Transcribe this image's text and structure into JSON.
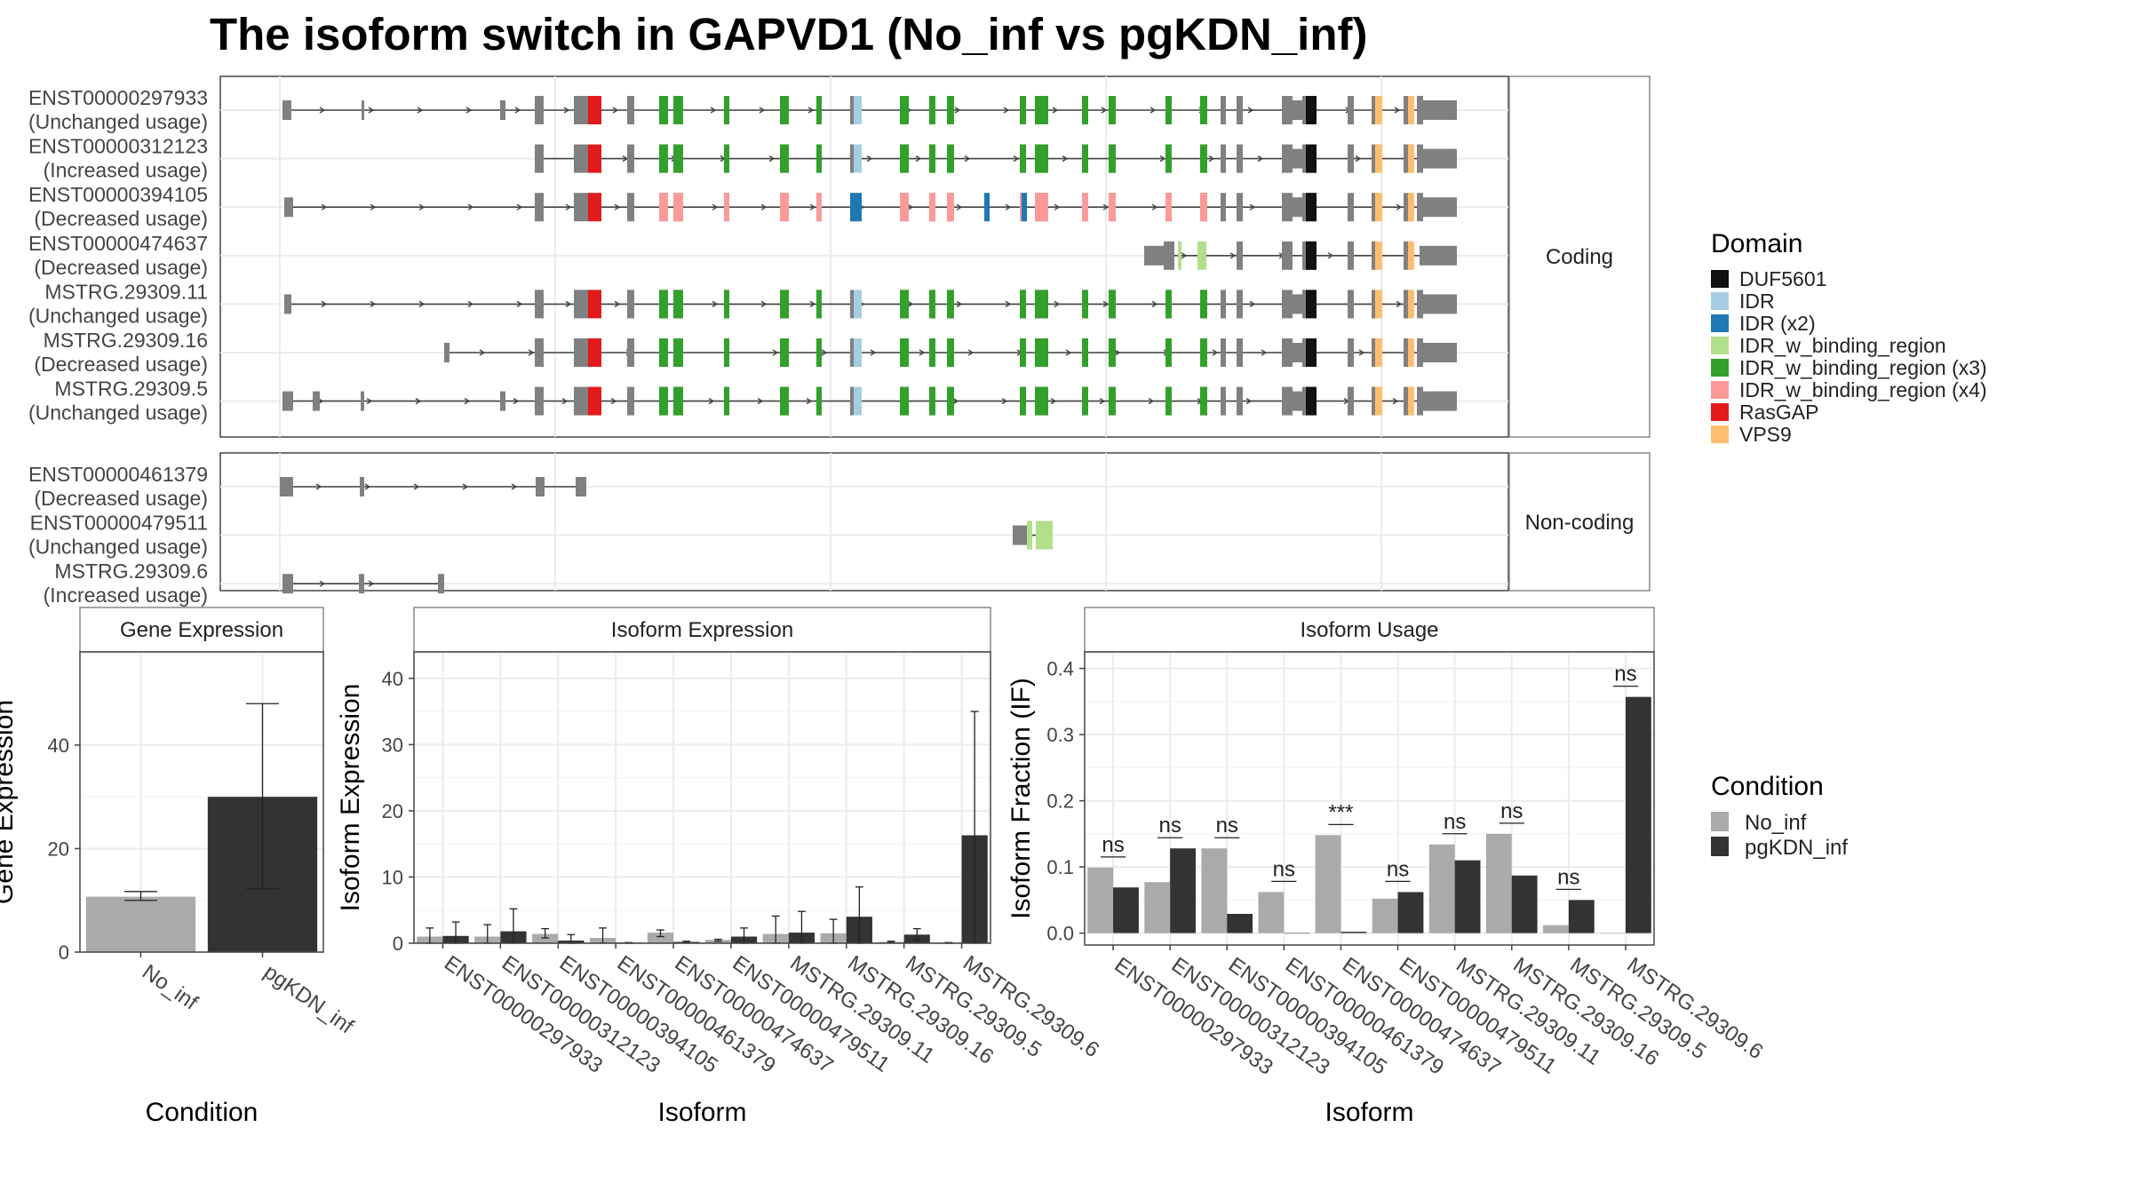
{
  "title": "The isoform switch in GAPVD1 (No_inf vs pgKDN_inf)",
  "transcripts": {
    "coding_label": "Coding",
    "noncoding_label": "Non-coding",
    "coding": [
      {
        "id": "ENST00000297933",
        "usage": "(Unchanged usage)"
      },
      {
        "id": "ENST00000312123",
        "usage": "(Increased usage)"
      },
      {
        "id": "ENST00000394105",
        "usage": "(Decreased usage)"
      },
      {
        "id": "ENST00000474637",
        "usage": "(Decreased usage)"
      },
      {
        "id": "MSTRG.29309.11",
        "usage": "(Unchanged usage)"
      },
      {
        "id": "MSTRG.29309.16",
        "usage": "(Decreased usage)"
      },
      {
        "id": "MSTRG.29309.5",
        "usage": "(Unchanged usage)"
      }
    ],
    "noncoding": [
      {
        "id": "ENST00000461379",
        "usage": "(Decreased usage)"
      },
      {
        "id": "ENST00000479511",
        "usage": "(Unchanged usage)"
      },
      {
        "id": "MSTRG.29309.6",
        "usage": "(Increased usage)"
      }
    ]
  },
  "domain_legend": {
    "title": "Domain",
    "items": [
      {
        "label": "DUF5601",
        "color": "#111111"
      },
      {
        "label": "IDR",
        "color": "#a6cee3"
      },
      {
        "label": "IDR (x2)",
        "color": "#1f78b4"
      },
      {
        "label": "IDR_w_binding_region",
        "color": "#b2df8a"
      },
      {
        "label": "IDR_w_binding_region (x3)",
        "color": "#33a02c"
      },
      {
        "label": "IDR_w_binding_region (x4)",
        "color": "#fb9a99"
      },
      {
        "label": "RasGAP",
        "color": "#e31a1c"
      },
      {
        "label": "VPS9",
        "color": "#fdbf6f"
      }
    ]
  },
  "condition_legend": {
    "title": "Condition",
    "items": [
      {
        "label": "No_inf",
        "color": "#aaaaaa"
      },
      {
        "label": "pgKDN_inf",
        "color": "#333333"
      }
    ]
  },
  "chart_data": [
    {
      "type": "bar",
      "title": "Gene Expression",
      "xlabel": "Condition",
      "ylabel": "Gene Expression",
      "categories": [
        "No_inf",
        "pgKDN_inf"
      ],
      "values": [
        10.7,
        30
      ],
      "errors": [
        [
          10,
          11.7
        ],
        [
          12.2,
          48
        ]
      ],
      "ylim": [
        0,
        58
      ],
      "yticks": [
        0,
        20,
        40
      ]
    },
    {
      "type": "bar",
      "title": "Isoform Expression",
      "xlabel": "Isoform",
      "ylabel": "Isoform Expression",
      "categories": [
        "ENST00000297933",
        "ENST00000312123",
        "ENST00000394105",
        "ENST00000461379",
        "ENST00000474637",
        "ENST00000479511",
        "MSTRG.29309.11",
        "MSTRG.29309.16",
        "MSTRG.29309.5",
        "MSTRG.29309.6"
      ],
      "series": [
        {
          "name": "No_inf",
          "values": [
            1.0,
            1.0,
            1.4,
            0.8,
            1.6,
            0.5,
            1.4,
            1.5,
            0.2,
            0.1
          ],
          "errors": [
            [
              0,
              2.3
            ],
            [
              0,
              2.8
            ],
            [
              0.8,
              2.2
            ],
            [
              0,
              2.3
            ],
            [
              1.0,
              2.0
            ],
            [
              0.3,
              0.6
            ],
            [
              0,
              4.1
            ],
            [
              0,
              3.6
            ],
            [
              0.1,
              0.3
            ],
            [
              0,
              0.1
            ]
          ]
        },
        {
          "name": "pgKDN_inf",
          "values": [
            1.1,
            1.8,
            0.4,
            0.1,
            0.2,
            1.0,
            1.6,
            4.0,
            1.3,
            16.3
          ],
          "errors": [
            [
              0,
              3.2
            ],
            [
              0,
              5.2
            ],
            [
              0,
              1.3
            ],
            [
              0,
              0.1
            ],
            [
              0.1,
              0.3
            ],
            [
              0,
              2.3
            ],
            [
              0,
              4.8
            ],
            [
              0,
              8.5
            ],
            [
              0.5,
              2.2
            ],
            [
              0,
              35
            ]
          ]
        }
      ],
      "ylim": [
        0,
        44
      ],
      "yticks": [
        0,
        10,
        20,
        30,
        40
      ]
    },
    {
      "type": "bar",
      "title": "Isoform Usage",
      "xlabel": "Isoform",
      "ylabel": "Isoform Fraction (IF)",
      "categories": [
        "ENST00000297933",
        "ENST00000312123",
        "ENST00000394105",
        "ENST00000461379",
        "ENST00000474637",
        "ENST00000479511",
        "MSTRG.29309.11",
        "MSTRG.29309.16",
        "MSTRG.29309.5",
        "MSTRG.29309.6"
      ],
      "series": [
        {
          "name": "No_inf",
          "values": [
            0.099,
            0.077,
            0.128,
            0.062,
            0.148,
            0.052,
            0.134,
            0.15,
            0.012,
            0.0
          ]
        },
        {
          "name": "pgKDN_inf",
          "values": [
            0.069,
            0.128,
            0.029,
            0.0,
            0.002,
            0.062,
            0.11,
            0.087,
            0.05,
            0.357
          ]
        }
      ],
      "significance": [
        "ns",
        "ns",
        "ns",
        "ns",
        "***",
        "ns",
        "ns",
        "ns",
        "ns",
        "ns"
      ],
      "ylim": [
        -0.018,
        0.425
      ],
      "yticks": [
        0.0,
        0.1,
        0.2,
        0.3,
        0.4
      ],
      "ytick_labels": [
        "0.0",
        "0.1",
        "0.2",
        "0.3",
        "0.4"
      ]
    }
  ]
}
